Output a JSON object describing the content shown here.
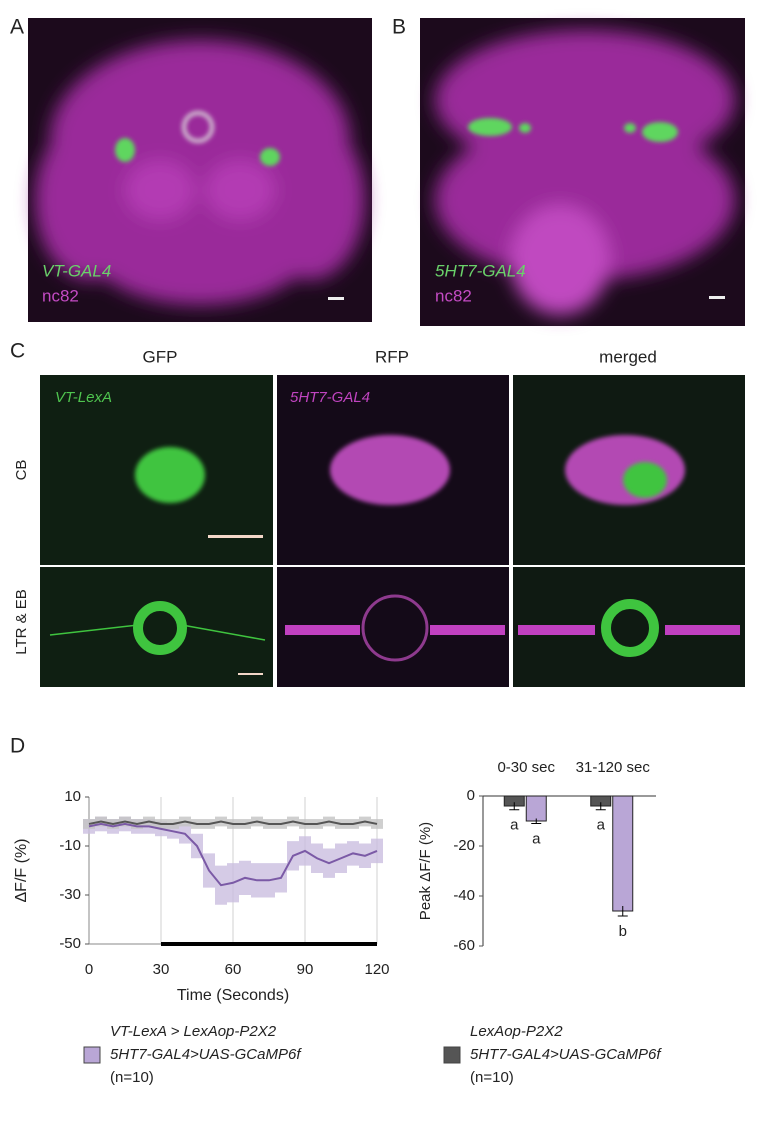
{
  "panels": {
    "a": {
      "letter": "A",
      "label1": "VT-GAL4",
      "label2": "nc82"
    },
    "b": {
      "letter": "B",
      "label1": "5HT7-GAL4",
      "label2": "nc82"
    },
    "c": {
      "letter": "C",
      "columns": [
        "GFP",
        "RFP",
        "merged"
      ],
      "rows": [
        "CB",
        "LTR & EB"
      ],
      "inset1": "VT-LexA",
      "inset2": "5HT7-GAL4"
    },
    "d": {
      "letter": "D"
    }
  },
  "chart_data": [
    {
      "type": "line",
      "xlabel": "Time (Seconds)",
      "ylabel": "ΔF/F (%)",
      "x": [
        0,
        5,
        10,
        15,
        20,
        25,
        30,
        35,
        40,
        45,
        50,
        55,
        60,
        65,
        70,
        75,
        80,
        85,
        90,
        95,
        100,
        105,
        110,
        115,
        120
      ],
      "xlim": [
        0,
        120
      ],
      "xticks": [
        0,
        30,
        60,
        90,
        120
      ],
      "ylim": [
        -50,
        10
      ],
      "yticks": [
        -50,
        -30,
        -10,
        10
      ],
      "grid": "x",
      "stimulus": [
        30,
        120
      ],
      "series": [
        {
          "name_lines": [
            "VT-LexA > LexAop-P2X2",
            "5HT7-GAL4>UAS-GCaMP6f",
            "(n=10)"
          ],
          "color": "#7b5aa6",
          "band_color": "#cbbfe0",
          "values": [
            -2,
            -1,
            -2,
            -1,
            -2,
            -2,
            -3,
            -4,
            -5,
            -10,
            -20,
            -26,
            -25,
            -23,
            -24,
            -24,
            -23,
            -14,
            -12,
            -15,
            -17,
            -15,
            -13,
            -14,
            -12
          ],
          "errors": [
            3,
            3,
            3,
            3,
            3,
            3,
            3,
            3,
            4,
            5,
            7,
            8,
            8,
            7,
            7,
            7,
            6,
            6,
            6,
            6,
            6,
            6,
            5,
            5,
            5
          ]
        },
        {
          "name_lines": [
            "LexAop-P2X2",
            "5HT7-GAL4>UAS-GCaMP6f",
            "(n=10)"
          ],
          "color": "#555555",
          "band_color": "#c4c4c4",
          "values": [
            -1,
            0,
            -1,
            0,
            -1,
            0,
            -1,
            -1,
            0,
            -1,
            -1,
            0,
            -1,
            -1,
            0,
            -1,
            -1,
            0,
            -1,
            -1,
            0,
            -1,
            -1,
            0,
            -1
          ],
          "errors": [
            2,
            2,
            2,
            2,
            2,
            2,
            2,
            2,
            2,
            2,
            2,
            2,
            2,
            2,
            2,
            2,
            2,
            2,
            2,
            2,
            2,
            2,
            2,
            2,
            2
          ]
        }
      ]
    },
    {
      "type": "bar",
      "ylabel": "Peak ΔF/F (%)",
      "categories": [
        "0-30 sec",
        "31-120 sec"
      ],
      "ylim": [
        -60,
        0
      ],
      "yticks": [
        -60,
        -40,
        -20,
        0
      ],
      "series": [
        {
          "color": "#b9a6d6",
          "values": [
            -10,
            -46
          ],
          "errors": [
            1,
            2
          ],
          "letters": [
            "a",
            "b"
          ]
        },
        {
          "color": "#555555",
          "values": [
            -4,
            -4
          ],
          "errors": [
            1.5,
            1.5
          ],
          "letters": [
            "a",
            "a"
          ]
        }
      ]
    }
  ]
}
